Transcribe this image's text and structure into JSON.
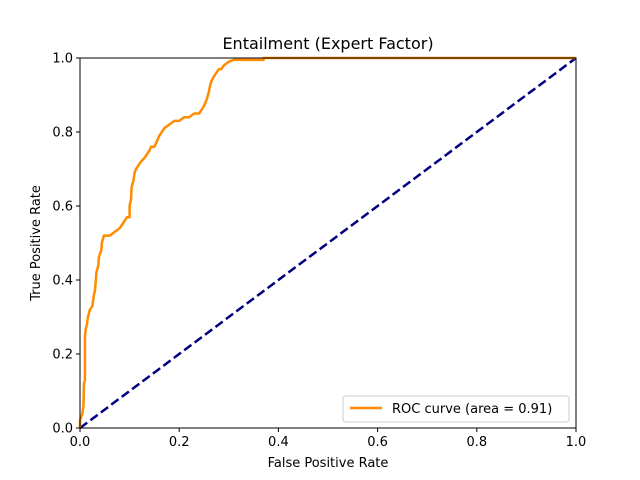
{
  "chart_data": {
    "type": "line",
    "title": "Entailment (Expert Factor)",
    "xlabel": "False Positive Rate",
    "ylabel": "True Positive Rate",
    "xlim": [
      0.0,
      1.0
    ],
    "ylim": [
      0.0,
      1.0
    ],
    "xticks": [
      "0.0",
      "0.2",
      "0.4",
      "0.6",
      "0.8",
      "1.0"
    ],
    "yticks": [
      "0.0",
      "0.2",
      "0.4",
      "0.6",
      "0.8",
      "1.0"
    ],
    "xtick_values": [
      0.0,
      0.2,
      0.4,
      0.6,
      0.8,
      1.0
    ],
    "ytick_values": [
      0.0,
      0.2,
      0.4,
      0.6,
      0.8,
      1.0
    ],
    "grid": false,
    "legend_position": "lower-right",
    "series": [
      {
        "name": "ROC curve (area = 0.91)",
        "color": "#ff8c00",
        "style": "solid",
        "x": [
          0.0,
          0.0,
          0.005,
          0.007,
          0.008,
          0.01,
          0.01,
          0.012,
          0.014,
          0.016,
          0.02,
          0.025,
          0.028,
          0.03,
          0.032,
          0.033,
          0.035,
          0.037,
          0.038,
          0.04,
          0.043,
          0.044,
          0.046,
          0.048,
          0.05,
          0.053,
          0.06,
          0.07,
          0.08,
          0.085,
          0.09,
          0.095,
          0.1,
          0.1,
          0.103,
          0.104,
          0.106,
          0.108,
          0.11,
          0.113,
          0.118,
          0.123,
          0.13,
          0.135,
          0.14,
          0.143,
          0.15,
          0.16,
          0.165,
          0.17,
          0.18,
          0.19,
          0.2,
          0.21,
          0.22,
          0.23,
          0.24,
          0.245,
          0.25,
          0.253,
          0.256,
          0.26,
          0.263,
          0.266,
          0.27,
          0.275,
          0.28,
          0.285,
          0.29,
          0.3,
          0.31,
          0.32,
          0.37,
          0.37,
          0.4,
          0.6,
          0.8,
          1.0
        ],
        "y": [
          0.0,
          0.02,
          0.04,
          0.06,
          0.12,
          0.13,
          0.25,
          0.27,
          0.28,
          0.3,
          0.32,
          0.33,
          0.36,
          0.37,
          0.4,
          0.42,
          0.43,
          0.44,
          0.46,
          0.47,
          0.48,
          0.5,
          0.51,
          0.52,
          0.52,
          0.52,
          0.52,
          0.53,
          0.54,
          0.55,
          0.56,
          0.57,
          0.57,
          0.6,
          0.62,
          0.65,
          0.66,
          0.67,
          0.69,
          0.7,
          0.71,
          0.72,
          0.73,
          0.74,
          0.75,
          0.76,
          0.76,
          0.79,
          0.8,
          0.81,
          0.82,
          0.83,
          0.83,
          0.84,
          0.84,
          0.85,
          0.85,
          0.86,
          0.87,
          0.88,
          0.89,
          0.91,
          0.93,
          0.94,
          0.95,
          0.96,
          0.97,
          0.97,
          0.98,
          0.99,
          0.995,
          0.995,
          0.995,
          1.0,
          1.0,
          1.0,
          1.0,
          1.0
        ]
      },
      {
        "name": "",
        "color": "#000080",
        "style": "dashed",
        "x": [
          0.0,
          1.0
        ],
        "y": [
          0.0,
          1.0
        ]
      }
    ]
  }
}
